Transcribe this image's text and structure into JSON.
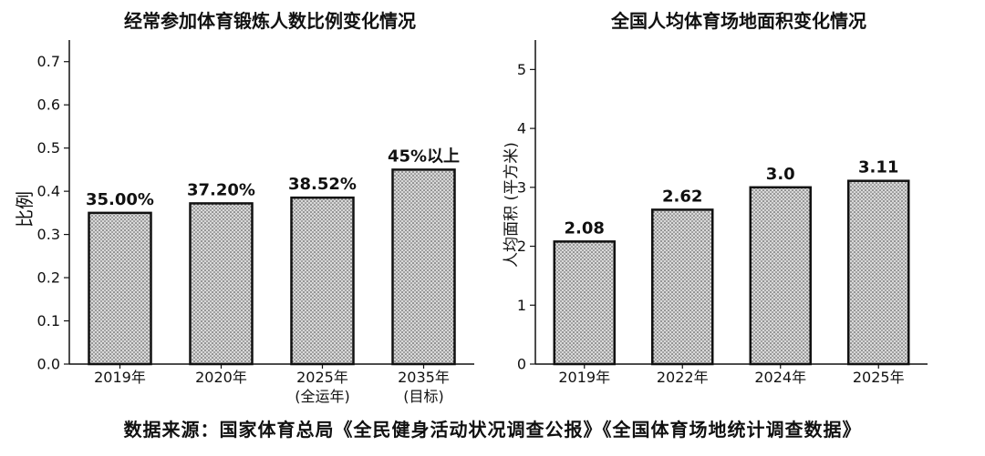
{
  "chart_data": [
    {
      "type": "bar",
      "title": "经常参加体育锻炼人数比例变化情况",
      "ylabel": "比例",
      "categories": [
        [
          "2019年"
        ],
        [
          "2020年"
        ],
        [
          "2025年",
          "(全运年)"
        ],
        [
          "2035年",
          "(目标)"
        ]
      ],
      "values": [
        0.35,
        0.372,
        0.3852,
        0.45
      ],
      "data_labels": [
        "35.00%",
        "37.20%",
        "38.52%",
        "45%以上"
      ],
      "ylim": [
        0,
        0.75
      ],
      "yticks": [
        "0.0",
        "0.1",
        "0.2",
        "0.3",
        "0.4",
        "0.5",
        "0.6",
        "0.7"
      ],
      "grid": false,
      "bar_fill": "stippled grey",
      "bar_edge_color": "#111111"
    },
    {
      "type": "bar",
      "title": "全国人均体育场地面积变化情况",
      "ylabel": "人均面积 (平方米)",
      "categories": [
        [
          "2019年"
        ],
        [
          "2022年"
        ],
        [
          "2024年"
        ],
        [
          "2025年"
        ]
      ],
      "values": [
        2.08,
        2.62,
        3.0,
        3.11
      ],
      "data_labels": [
        "2.08",
        "2.62",
        "3.0",
        "3.11"
      ],
      "ylim": [
        0,
        5.5
      ],
      "yticks": [
        "0",
        "1",
        "2",
        "3",
        "4",
        "5"
      ],
      "grid": false,
      "bar_fill": "stippled grey",
      "bar_edge_color": "#111111"
    }
  ],
  "caption": "数据来源：国家体育总局《全民健身活动状况调查公报》《全国体育场地统计调查数据》"
}
